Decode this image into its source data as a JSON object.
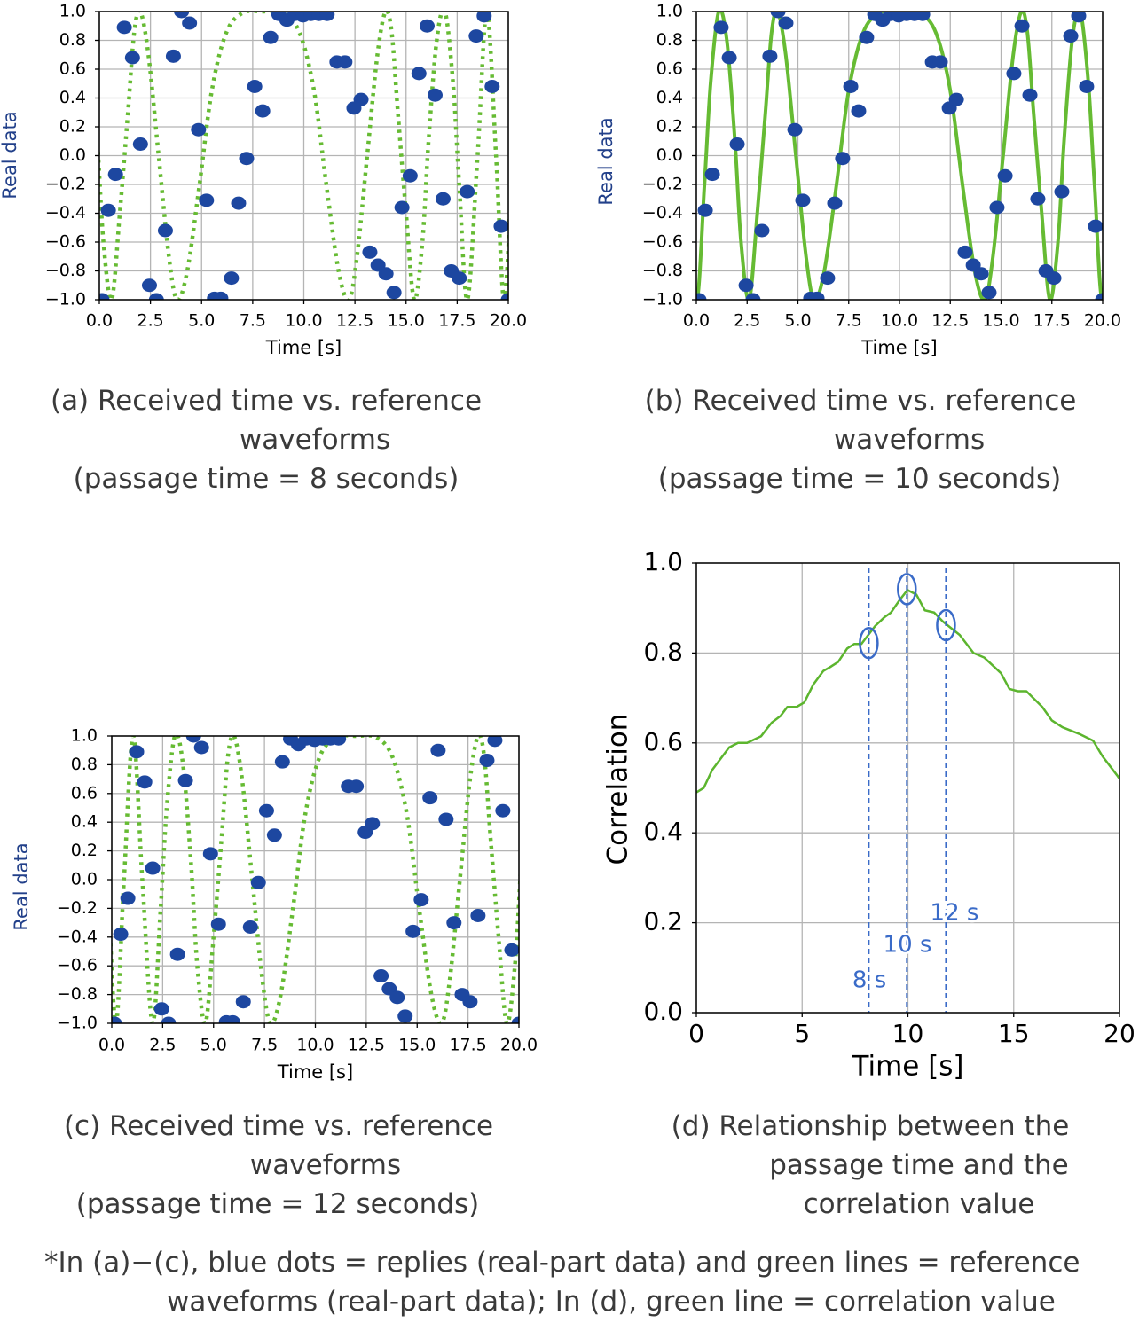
{
  "footnote": [
    "*In (a)−(c), blue dots = replies (real-part data) and green lines = reference",
    "waveforms (real-part data); In (d), green line = correlation value"
  ],
  "colors": {
    "replies": "#1d47a0",
    "reference": "#66bb33",
    "correlation": "#5cb52e",
    "markers": "#3a6bc8",
    "ylabel_real": "#22408a",
    "grid": "#b4b4b4"
  },
  "chart_data": [
    {
      "id": "a",
      "type": "scatter+line",
      "xlabel": "Time [s]",
      "ylabel": "Real data",
      "xlim": [
        0,
        20
      ],
      "ylim": [
        -1,
        1
      ],
      "grid": true,
      "xticks": [
        0,
        2.5,
        5,
        7.5,
        10,
        12.5,
        15,
        17.5,
        20
      ],
      "xtick_labels": [
        "0.0",
        "2.5",
        "5.0",
        "7.5",
        "10.0",
        "12.5",
        "15.0",
        "17.5",
        "20.0"
      ],
      "yticks": [
        1,
        0.8,
        0.6,
        0.4,
        0.2,
        0,
        -0.2,
        -0.4,
        -0.6,
        -0.8,
        -1
      ],
      "ytick_labels": [
        "1.0",
        "0.8",
        "0.6",
        "0.4",
        "0.2",
        "0.0",
        "−0.2",
        "−0.4",
        "−0.6",
        "−0.8",
        "−1.0"
      ],
      "caption": [
        "(a) Received time vs. reference",
        "waveforms",
        "(passage time = 8 seconds)"
      ],
      "reference_style": "dotted",
      "reference": {
        "x": [
          -0.5,
          -0.1,
          0.2,
          0.6,
          1.0,
          1.4,
          1.7,
          2.0,
          2.4,
          2.9,
          3.4,
          3.8,
          4.3,
          4.9,
          5.5,
          6.2,
          7.0,
          8,
          9,
          9.8,
          10.5,
          11.1,
          11.7,
          12.2,
          12.6,
          13.1,
          13.6,
          14,
          14.3,
          14.6,
          15,
          15.4,
          15.8,
          16.1,
          16.5,
          16.9,
          17.3,
          17.6,
          18,
          18.5,
          18.95,
          19.4,
          19.8,
          20.2
        ],
        "y": [
          0.8,
          0.1,
          -0.6,
          -1,
          -0.4,
          0.3,
          0.85,
          1,
          0.7,
          0,
          -0.7,
          -1,
          -0.8,
          -0.2,
          0.45,
          0.85,
          0.99,
          1,
          0.99,
          0.85,
          0.45,
          -0.2,
          -0.8,
          -1,
          -0.7,
          0,
          0.7,
          1,
          0.85,
          0.3,
          -0.4,
          -1,
          -0.6,
          0.1,
          0.8,
          1,
          0.5,
          -0.2,
          -1,
          0,
          1,
          0,
          -1,
          0
        ]
      }
    },
    {
      "id": "b",
      "type": "scatter+line",
      "xlabel": "Time [s]",
      "ylabel": "Real data",
      "xlim": [
        0,
        20
      ],
      "ylim": [
        -1,
        1
      ],
      "grid": true,
      "xticks": [
        0,
        2.5,
        5,
        7.5,
        10,
        12.5,
        15,
        17.5,
        20
      ],
      "xtick_labels": [
        "0.0",
        "2.5",
        "5.0",
        "7.5",
        "10.0",
        "12.5",
        "15.0",
        "17.5",
        "20.0"
      ],
      "yticks": [
        1,
        0.8,
        0.6,
        0.4,
        0.2,
        0,
        -0.2,
        -0.4,
        -0.6,
        -0.8,
        -1
      ],
      "ytick_labels": [
        "1.0",
        "0.8",
        "0.6",
        "0.4",
        "0.2",
        "0.0",
        "−0.2",
        "−0.4",
        "−0.6",
        "−0.8",
        "−1.0"
      ],
      "caption": [
        "(b) Received time vs. reference",
        "waveforms",
        "(passage time = 10 seconds)"
      ],
      "reference_style": "solid",
      "reference": {
        "x": [
          -0.5,
          0,
          0.4,
          0.7,
          1.1,
          1.5,
          1.9,
          2.2,
          2.6,
          3.0,
          3.4,
          3.7,
          4.0,
          4.4,
          4.9,
          5.4,
          5.8,
          6.3,
          6.9,
          7.5,
          8.2,
          9.0,
          10,
          11,
          11.8,
          12.5,
          13.1,
          13.7,
          14.2,
          14.6,
          15.1,
          15.6,
          16,
          16.3,
          16.6,
          17,
          17.4,
          17.8,
          18.1,
          18.5,
          18.9,
          19.3,
          19.6,
          20,
          20.5
        ],
        "y": [
          0,
          -1,
          -0.2,
          0.5,
          1,
          0.8,
          0.1,
          -0.6,
          -1,
          -0.4,
          0.3,
          0.85,
          1,
          0.7,
          0,
          -0.7,
          -1,
          -0.8,
          -0.2,
          0.45,
          0.85,
          0.99,
          1,
          0.99,
          0.85,
          0.45,
          -0.2,
          -0.8,
          -1,
          -0.7,
          0,
          0.7,
          1,
          0.85,
          0.3,
          -0.4,
          -1,
          -0.6,
          0.1,
          0.8,
          1,
          0.5,
          -0.2,
          -1,
          0
        ]
      }
    },
    {
      "id": "c",
      "type": "scatter+line",
      "xlabel": "Time [s]",
      "ylabel": "Real data",
      "xlim": [
        0,
        20
      ],
      "ylim": [
        -1,
        1
      ],
      "grid": true,
      "xticks": [
        0,
        2.5,
        5,
        7.5,
        10,
        12.5,
        15,
        17.5,
        20
      ],
      "xtick_labels": [
        "0.0",
        "2.5",
        "5.0",
        "7.5",
        "10.0",
        "12.5",
        "15.0",
        "17.5",
        "20.0"
      ],
      "yticks": [
        1,
        0.8,
        0.6,
        0.4,
        0.2,
        0,
        -0.2,
        -0.4,
        -0.6,
        -0.8,
        -1
      ],
      "ytick_labels": [
        "1.0",
        "0.8",
        "0.6",
        "0.4",
        "0.2",
        "0.0",
        "−0.2",
        "−0.4",
        "−0.6",
        "−0.8",
        "−1.0"
      ],
      "caption": [
        "(c) Received time vs. reference",
        "waveforms",
        "(passage time = 12 seconds)"
      ],
      "reference_style": "dotted",
      "reference": {
        "x": [
          -0.2,
          0.2,
          0.6,
          1.05,
          1.5,
          2,
          2.4,
          2.7,
          3.1,
          3.5,
          3.9,
          4.2,
          4.6,
          5.0,
          5.4,
          5.7,
          6.0,
          6.4,
          6.9,
          7.4,
          7.8,
          8.3,
          8.9,
          9.5,
          10.2,
          11,
          12,
          13,
          13.8,
          14.5,
          15.1,
          15.7,
          16.2,
          16.6,
          17.1,
          17.6,
          18,
          18.3,
          18.6,
          19,
          19.4,
          19.8,
          20.1
        ],
        "y": [
          0,
          -1,
          0,
          1,
          0,
          -1,
          -0.2,
          0.5,
          1,
          0.8,
          0.1,
          -0.6,
          -1,
          -0.4,
          0.3,
          0.85,
          1,
          0.7,
          0,
          -0.7,
          -1,
          -0.8,
          -0.2,
          0.45,
          0.85,
          0.99,
          1,
          0.99,
          0.85,
          0.45,
          -0.2,
          -0.8,
          -1,
          -0.7,
          0,
          0.7,
          1,
          0.85,
          0.3,
          -0.4,
          -1,
          -0.6,
          0.1
        ]
      }
    },
    {
      "id": "d",
      "type": "line",
      "xlabel": "Time [s]",
      "ylabel": "Correlation",
      "xlim": [
        0,
        20
      ],
      "ylim": [
        0,
        1
      ],
      "grid": true,
      "xticks": [
        0,
        5,
        10,
        15,
        20
      ],
      "xtick_labels": [
        "0",
        "5",
        "10",
        "15",
        "20"
      ],
      "yticks": [
        1,
        0.8,
        0.6,
        0.4,
        0.2,
        0
      ],
      "ytick_labels": [
        "1.0",
        "0.8",
        "0.6",
        "0.4",
        "0.2",
        "0.0"
      ],
      "caption": [
        "(d) Relationship between the",
        "passage time and the",
        "correlation value"
      ],
      "series": {
        "x": [
          0,
          0.35,
          0.75,
          1.55,
          1.97,
          2.4,
          3.06,
          3.56,
          3.98,
          4.3,
          4.74,
          5.1,
          5.53,
          6.0,
          6.37,
          6.7,
          7.13,
          7.46,
          7.8,
          8.45,
          8.9,
          9.2,
          9.64,
          9.98,
          10.4,
          10.8,
          11.24,
          11.65,
          12.45,
          13.1,
          13.6,
          14.4,
          14.8,
          15.2,
          15.6,
          16.35,
          16.8,
          17.3,
          18.1,
          18.75,
          19.2,
          19.9,
          20
        ],
        "y": [
          0.49,
          0.5,
          0.54,
          0.59,
          0.6,
          0.6,
          0.615,
          0.645,
          0.66,
          0.68,
          0.68,
          0.69,
          0.73,
          0.76,
          0.77,
          0.78,
          0.81,
          0.82,
          0.82,
          0.86,
          0.88,
          0.89,
          0.92,
          0.94,
          0.93,
          0.895,
          0.89,
          0.87,
          0.84,
          0.8,
          0.79,
          0.755,
          0.72,
          0.715,
          0.715,
          0.68,
          0.65,
          0.635,
          0.62,
          0.605,
          0.57,
          0.527,
          0.52
        ]
      },
      "markers": [
        {
          "x": 8,
          "y": 0.82,
          "label": "8 s"
        },
        {
          "x": 10,
          "y": 0.94,
          "label": "10 s"
        },
        {
          "x": 12,
          "y": 0.86,
          "label": "12 s"
        }
      ]
    }
  ],
  "replies": {
    "x": [
      0.13,
      0.44,
      0.79,
      1.22,
      1.62,
      2.01,
      2.45,
      2.79,
      3.23,
      3.62,
      4.02,
      4.41,
      4.85,
      5.24,
      5.63,
      5.94,
      6.46,
      6.81,
      7.2,
      7.6,
      7.99,
      8.38,
      8.78,
      9.17,
      9.56,
      9.96,
      10.35,
      10.74,
      11.14,
      11.62,
      12.01,
      12.45,
      12.8,
      13.23,
      13.63,
      14.02,
      14.41,
      14.8,
      15.2,
      15.63,
      16.03,
      16.42,
      16.81,
      17.21,
      17.6,
      17.99,
      18.43,
      18.82,
      19.21,
      19.65,
      20.0
    ],
    "y": [
      -1.0,
      -0.38,
      -0.13,
      0.89,
      0.68,
      0.08,
      -0.9,
      -1.0,
      -0.52,
      0.69,
      1.0,
      0.92,
      0.18,
      -0.31,
      -0.99,
      -0.99,
      -0.85,
      -0.33,
      -0.02,
      0.48,
      0.31,
      0.82,
      0.98,
      0.94,
      0.98,
      0.97,
      0.98,
      0.98,
      0.98,
      0.65,
      0.65,
      0.33,
      0.39,
      -0.67,
      -0.76,
      -0.82,
      -0.95,
      -0.36,
      -0.14,
      0.57,
      0.9,
      0.42,
      -0.3,
      -0.8,
      -0.85,
      -0.25,
      0.83,
      0.97,
      0.48,
      -0.49,
      -1.0
    ]
  }
}
